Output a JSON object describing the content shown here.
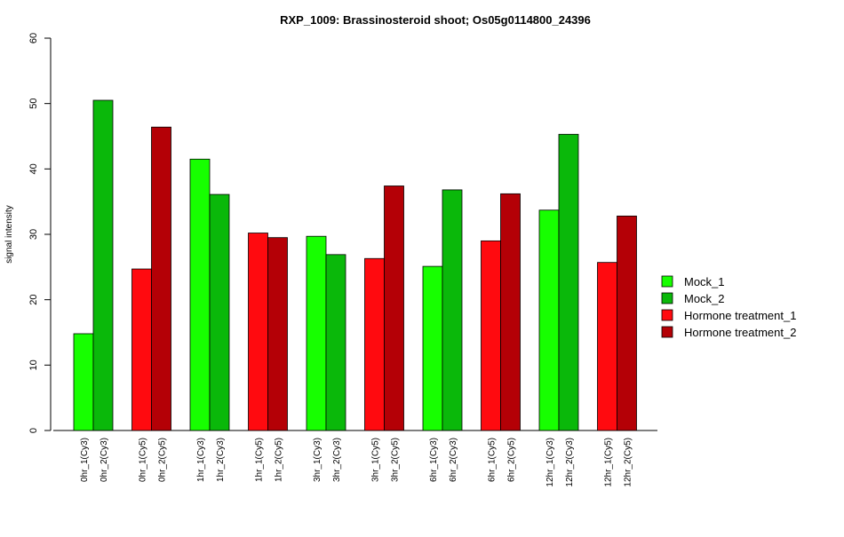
{
  "chart_data": {
    "type": "bar",
    "title": "RXP_1009: Brassinosteroid shoot; Os05g0114800_24396",
    "xlabel": "",
    "ylabel": "signal intensity",
    "ylim": [
      0,
      60
    ],
    "yticks": [
      0,
      10,
      20,
      30,
      40,
      50,
      60
    ],
    "legend_position": "right",
    "groups": [
      {
        "labels": [
          "0hr_1(Cy3)",
          "0hr_2(Cy3)"
        ],
        "values": [
          14.8,
          50.5
        ],
        "series": [
          "Mock_1",
          "Mock_2"
        ]
      },
      {
        "labels": [
          "0hr_1(Cy5)",
          "0hr_2(Cy5)"
        ],
        "values": [
          24.7,
          46.4
        ],
        "series": [
          "Hormone treatment_1",
          "Hormone treatment_2"
        ]
      },
      {
        "labels": [
          "1hr_1(Cy3)",
          "1hr_2(Cy3)"
        ],
        "values": [
          41.5,
          36.1
        ],
        "series": [
          "Mock_1",
          "Mock_2"
        ]
      },
      {
        "labels": [
          "1hr_1(Cy5)",
          "1hr_2(Cy5)"
        ],
        "values": [
          30.2,
          29.5
        ],
        "series": [
          "Hormone treatment_1",
          "Hormone treatment_2"
        ]
      },
      {
        "labels": [
          "3hr_1(Cy3)",
          "3hr_2(Cy3)"
        ],
        "values": [
          29.7,
          26.9
        ],
        "series": [
          "Mock_1",
          "Mock_2"
        ]
      },
      {
        "labels": [
          "3hr_1(Cy5)",
          "3hr_2(Cy5)"
        ],
        "values": [
          26.3,
          37.4
        ],
        "series": [
          "Hormone treatment_1",
          "Hormone treatment_2"
        ]
      },
      {
        "labels": [
          "6hr_1(Cy3)",
          "6hr_2(Cy3)"
        ],
        "values": [
          25.1,
          36.8
        ],
        "series": [
          "Mock_1",
          "Mock_2"
        ]
      },
      {
        "labels": [
          "6hr_1(Cy5)",
          "6hr_2(Cy5)"
        ],
        "values": [
          29.0,
          36.2
        ],
        "series": [
          "Hormone treatment_1",
          "Hormone treatment_2"
        ]
      },
      {
        "labels": [
          "12hr_1(Cy3)",
          "12hr_2(Cy3)"
        ],
        "values": [
          33.7,
          45.3
        ],
        "series": [
          "Mock_1",
          "Mock_2"
        ]
      },
      {
        "labels": [
          "12hr_1(Cy5)",
          "12hr_2(Cy5)"
        ],
        "values": [
          25.7,
          32.8
        ],
        "series": [
          "Hormone treatment_1",
          "Hormone treatment_2"
        ]
      }
    ],
    "legend": [
      {
        "name": "Mock_1",
        "color": "#17ff00"
      },
      {
        "name": "Mock_2",
        "color": "#0ab80a"
      },
      {
        "name": "Hormone treatment_1",
        "color": "#ff0a0f"
      },
      {
        "name": "Hormone treatment_2",
        "color": "#b40006"
      }
    ]
  }
}
